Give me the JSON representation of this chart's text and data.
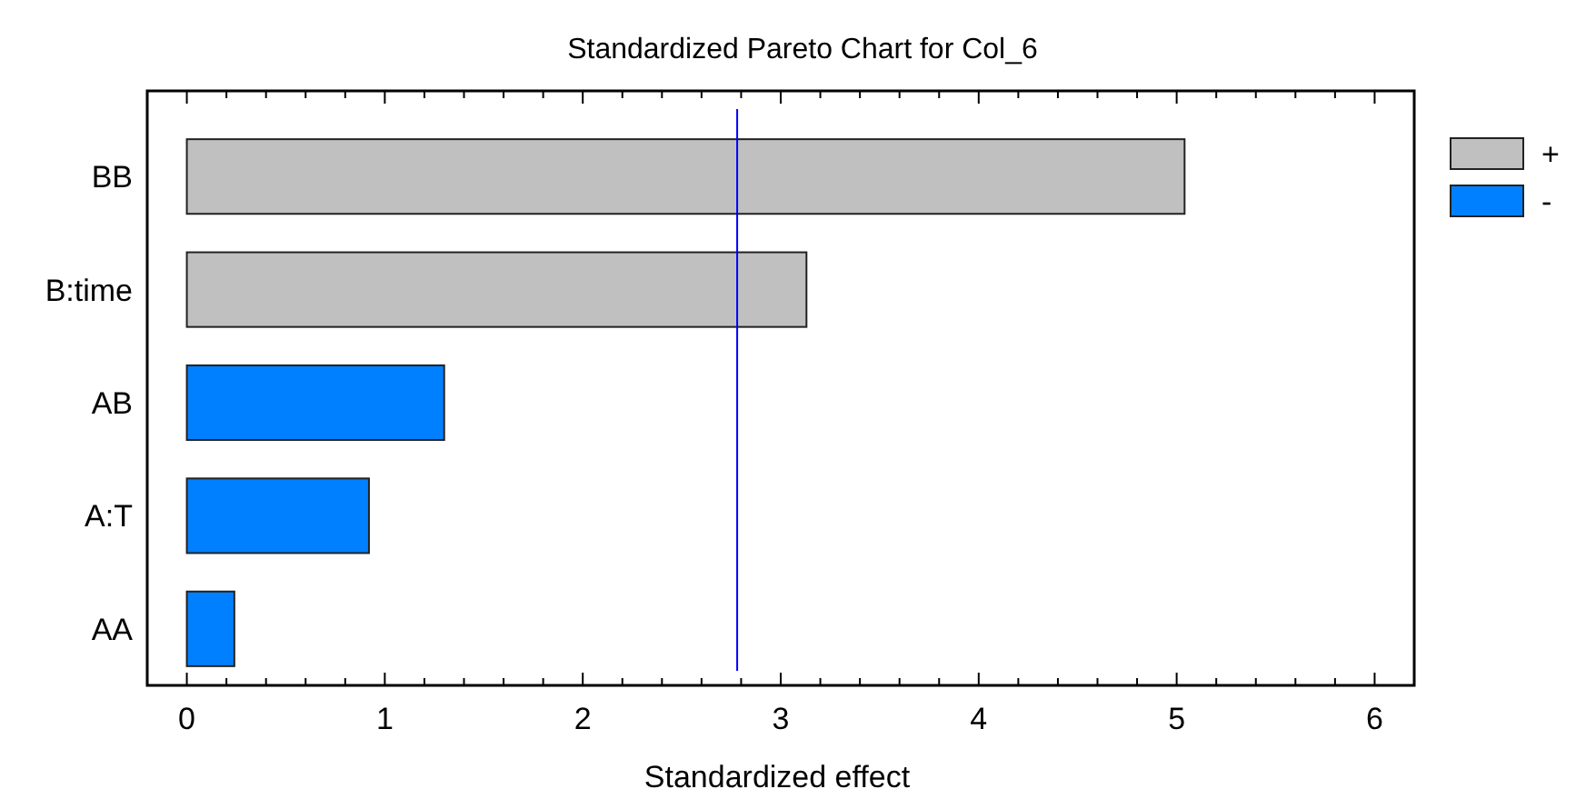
{
  "chart_data": {
    "type": "bar",
    "orientation": "horizontal",
    "stacked": true,
    "title": "Standardized Pareto Chart for Col_6",
    "xlabel": "Standardized effect",
    "categories": [
      "BB",
      "B:time",
      "AB",
      "A:T",
      "AA"
    ],
    "series": [
      {
        "name": "+",
        "color": "#c0c0c0",
        "values": [
          5.04,
          3.13,
          null,
          null,
          null
        ]
      },
      {
        "name": "-",
        "color": "#0080ff",
        "values": [
          null,
          null,
          1.3,
          0.92,
          0.24
        ]
      }
    ],
    "xlim": [
      -0.2,
      6.2
    ],
    "xticks": [
      0,
      {
        "value": 0.2,
        "label": null
      },
      {
        "value": 0.4,
        "label": null
      },
      {
        "value": 0.6,
        "label": null
      },
      {
        "value": 0.8,
        "label": null
      },
      1,
      {
        "value": 1.2,
        "label": null
      },
      {
        "value": 1.4,
        "label": null
      },
      {
        "value": 1.6,
        "label": null
      },
      {
        "value": 1.8,
        "label": null
      },
      2,
      {
        "value": 2.2,
        "label": null
      },
      {
        "value": 2.4,
        "label": null
      },
      {
        "value": 2.6,
        "label": null
      },
      {
        "value": 2.8,
        "label": null
      },
      3,
      {
        "value": 3.2,
        "label": null
      },
      {
        "value": 3.4,
        "label": null
      },
      {
        "value": 3.6,
        "label": null
      },
      {
        "value": 3.8,
        "label": null
      },
      4,
      {
        "value": 4.2,
        "label": null
      },
      {
        "value": 4.4,
        "label": null
      },
      {
        "value": 4.6,
        "label": null
      },
      {
        "value": 4.8,
        "label": null
      },
      5,
      {
        "value": 5.2,
        "label": null
      },
      {
        "value": 5.4,
        "label": null
      },
      {
        "value": 5.6,
        "label": null
      },
      {
        "value": 5.8,
        "label": null
      },
      6
    ],
    "ref_lines": [
      {
        "axis": "x",
        "value": 2.78,
        "color": "#0000ff"
      }
    ],
    "legend": "top right",
    "grid": false
  }
}
